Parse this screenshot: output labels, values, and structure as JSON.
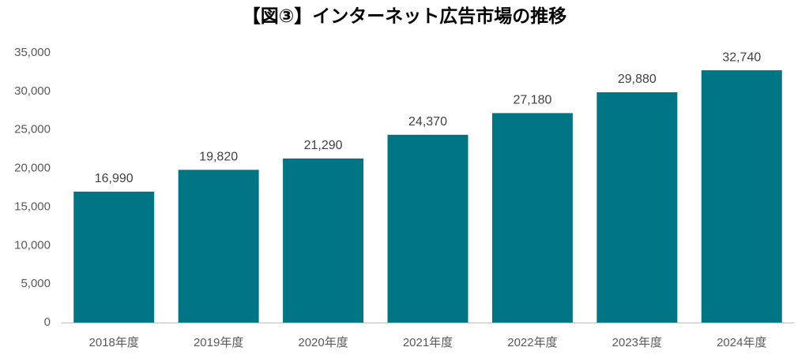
{
  "chart_data": {
    "type": "bar",
    "title": "【図③】インターネット広告市場の推移",
    "categories": [
      "2018年度",
      "2019年度",
      "2020年度",
      "2021年度",
      "2022年度",
      "2023年度",
      "2024年度"
    ],
    "values": [
      16990,
      19820,
      21290,
      24370,
      27180,
      29880,
      32740
    ],
    "value_labels": [
      "16,990",
      "19,820",
      "21,290",
      "24,370",
      "27,180",
      "29,880",
      "32,740"
    ],
    "color": "#007584",
    "ylim": [
      0,
      35000
    ],
    "yticks": [
      0,
      {
        "value": 5000,
        "label": "5,000"
      },
      {
        "value": 10000,
        "label": "10,000"
      },
      {
        "value": 15000,
        "label": "15,000"
      },
      {
        "value": 20000,
        "label": "20,000"
      },
      {
        "value": 25000,
        "label": "25,000"
      },
      {
        "value": 30000,
        "label": "30,000"
      },
      {
        "value": 35000,
        "label": "35,000"
      }
    ],
    "grid": false
  }
}
